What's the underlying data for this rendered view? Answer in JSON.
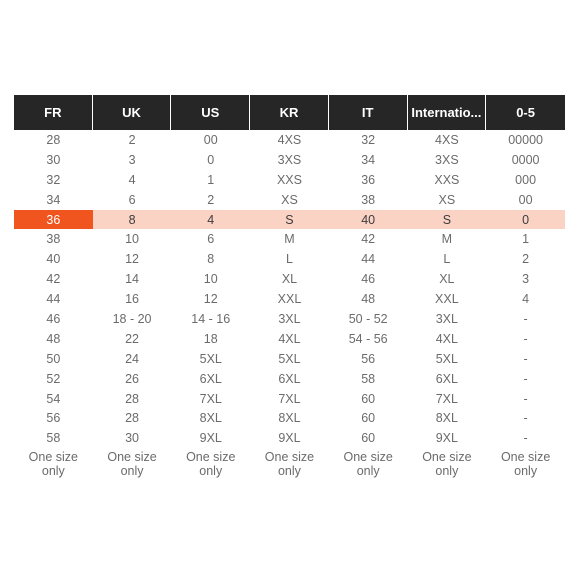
{
  "headers": [
    "FR",
    "UK",
    "US",
    "KR",
    "IT",
    "Internatio...",
    "0-5"
  ],
  "highlight_index": 4,
  "colors": {
    "header_bg": "#262626",
    "highlight_row": "#fbd3c5",
    "highlight_cell": "#f0551f"
  },
  "rows": [
    [
      "28",
      "2",
      "00",
      "4XS",
      "32",
      "4XS",
      "00000"
    ],
    [
      "30",
      "3",
      "0",
      "3XS",
      "34",
      "3XS",
      "0000"
    ],
    [
      "32",
      "4",
      "1",
      "XXS",
      "36",
      "XXS",
      "000"
    ],
    [
      "34",
      "6",
      "2",
      "XS",
      "38",
      "XS",
      "00"
    ],
    [
      "36",
      "8",
      "4",
      "S",
      "40",
      "S",
      "0"
    ],
    [
      "38",
      "10",
      "6",
      "M",
      "42",
      "M",
      "1"
    ],
    [
      "40",
      "12",
      "8",
      "L",
      "44",
      "L",
      "2"
    ],
    [
      "42",
      "14",
      "10",
      "XL",
      "46",
      "XL",
      "3"
    ],
    [
      "44",
      "16",
      "12",
      "XXL",
      "48",
      "XXL",
      "4"
    ],
    [
      "46",
      "18 - 20",
      "14 - 16",
      "3XL",
      "50 - 52",
      "3XL",
      "-"
    ],
    [
      "48",
      "22",
      "18",
      "4XL",
      "54 - 56",
      "4XL",
      "-"
    ],
    [
      "50",
      "24",
      "5XL",
      "5XL",
      "56",
      "5XL",
      "-"
    ],
    [
      "52",
      "26",
      "6XL",
      "6XL",
      "58",
      "6XL",
      "-"
    ],
    [
      "54",
      "28",
      "7XL",
      "7XL",
      "60",
      "7XL",
      "-"
    ],
    [
      "56",
      "28",
      "8XL",
      "8XL",
      "60",
      "8XL",
      "-"
    ],
    [
      "58",
      "30",
      "9XL",
      "9XL",
      "60",
      "9XL",
      "-"
    ],
    [
      "One size only",
      "One size only",
      "One size only",
      "One size only",
      "One size only",
      "One size only",
      "One size only"
    ]
  ]
}
